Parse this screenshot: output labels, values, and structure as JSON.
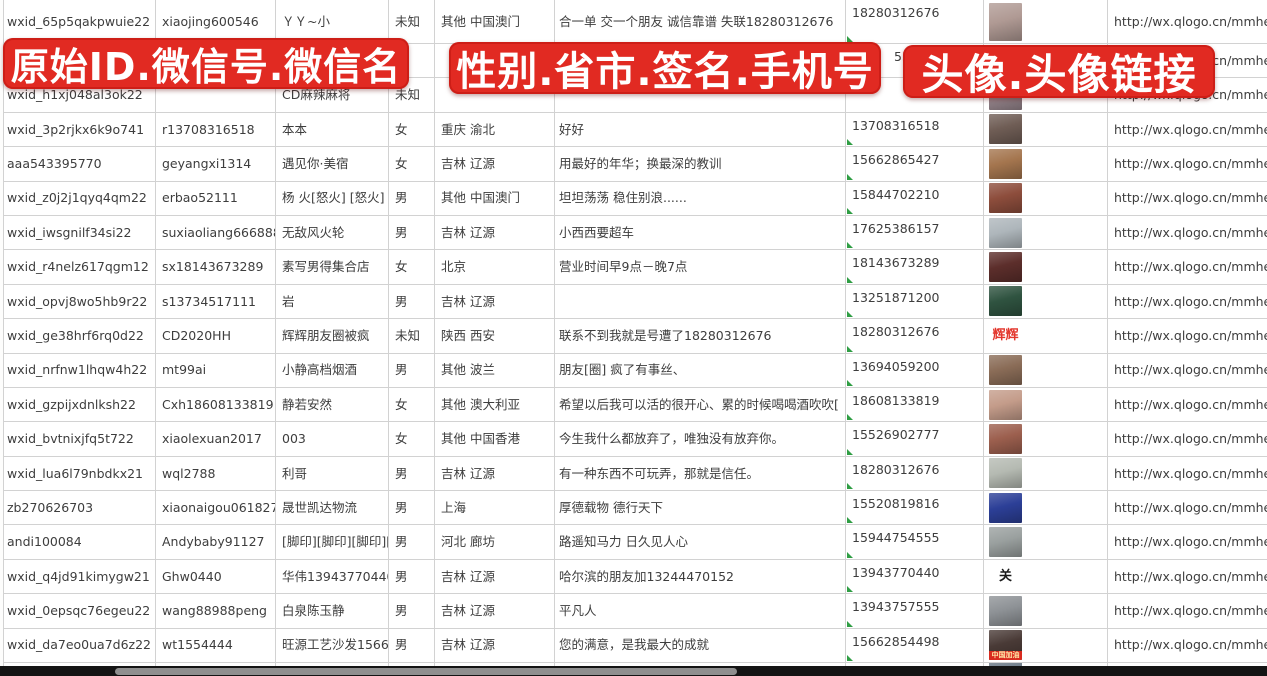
{
  "banners": [
    {
      "label": "原始ID.微信号.微信名"
    },
    {
      "label": "性别.省市.签名.手机号"
    },
    {
      "label": "头像.头像链接"
    }
  ],
  "colors": {
    "banner_red": "#e12a22",
    "grid_line": "#d2d2d2",
    "text": "#3d3d3d",
    "triangle_green": "#2f9e44",
    "avatar_strip_red": "#d92b1f"
  },
  "columns": [
    "原始ID",
    "微信号",
    "微信名",
    "性别",
    "省市",
    "签名",
    "手机号",
    "头像",
    "头像链接"
  ],
  "url_label": "http://wx.qlogo.cn/mmhead",
  "rows": [
    {
      "wxid": "wxid_65p5qakpwuie22",
      "wechat_id": "xiaojing600546",
      "name": "ＹＹ~小",
      "gender": "未知",
      "region": "其他 中国澳门",
      "signature": "合一单 交一个朋友 诚信靠谱 失联18280312676",
      "phone": "18280312676",
      "phone_indent": false,
      "avatar": {
        "kind": "photo",
        "color": "#b09a94"
      },
      "has_url": true
    },
    {
      "wxid": "",
      "wechat_id": "",
      "name": "",
      "gender": "",
      "region": "",
      "signature": "",
      "phone": "5386",
      "phone_indent": true,
      "avatar": {
        "kind": "photo",
        "color": "#44598a"
      },
      "has_url": true
    },
    {
      "wxid": "wxid_h1xj048al3ok22",
      "wechat_id": "",
      "name": "CD麻辣麻将",
      "gender": "未知",
      "region": "",
      "signature": "",
      "phone": "",
      "phone_indent": false,
      "avatar": {
        "kind": "photo",
        "color": "#97868d"
      },
      "has_url": true
    },
    {
      "wxid": "wxid_3p2rjkx6k9o741",
      "wechat_id": "r13708316518",
      "name": "本本",
      "gender": "女",
      "region": "重庆 渝北",
      "signature": "好好",
      "phone": "13708316518",
      "phone_indent": false,
      "avatar": {
        "kind": "photo",
        "color": "#6f5d55"
      },
      "has_url": true
    },
    {
      "wxid": "aaa543395770",
      "wechat_id": "geyangxi1314",
      "name": "遇见你·美宿",
      "gender": "女",
      "region": "吉林 辽源",
      "signature": "用最好的年华；换最深的教训",
      "phone": "15662865427",
      "phone_indent": false,
      "avatar": {
        "kind": "photo",
        "color": "#a4754e"
      },
      "has_url": true
    },
    {
      "wxid": "wxid_z0j2j1qyq4qm22",
      "wechat_id": "erbao52111",
      "name": "杨 火[怒火] [怒火]",
      "gender": "男",
      "region": "其他 中国澳门",
      "signature": "坦坦荡荡 稳住别浪......",
      "phone": "15844702210",
      "phone_indent": false,
      "avatar": {
        "kind": "photo",
        "color": "#8d4d3c"
      },
      "has_url": true
    },
    {
      "wxid": "wxid_iwsgnilf34si22",
      "wechat_id": "suxiaoliang666888",
      "name": "无敌风火轮",
      "gender": "男",
      "region": "吉林 辽源",
      "signature": "小西西要超车",
      "phone": "17625386157",
      "phone_indent": false,
      "avatar": {
        "kind": "photo",
        "color": "#aeb6bb"
      },
      "has_url": true
    },
    {
      "wxid": "wxid_r4nelz617qgm12",
      "wechat_id": "sx18143673289",
      "name": "素写男得集合店",
      "gender": "女",
      "region": "北京",
      "signature": "营业时间早9点－晚7点",
      "phone": "18143673289",
      "phone_indent": false,
      "avatar": {
        "kind": "photo",
        "color": "#5c2e2b"
      },
      "has_url": true
    },
    {
      "wxid": "wxid_opvj8wo5hb9r22",
      "wechat_id": "s13734517111",
      "name": "岩",
      "gender": "男",
      "region": "吉林 辽源",
      "signature": "",
      "phone": "13251871200",
      "phone_indent": false,
      "avatar": {
        "kind": "photo",
        "color": "#2f5340"
      },
      "has_url": true
    },
    {
      "wxid": "wxid_ge38hrf6rq0d22",
      "wechat_id": "CD2020HH",
      "name": "辉辉朋友圈被疯",
      "gender": "未知",
      "region": "陕西 西安",
      "signature": "联系不到我就是号遭了18280312676",
      "phone": "18280312676",
      "phone_indent": false,
      "avatar": {
        "kind": "label",
        "bg": "#ffffff",
        "color": "#e3362c",
        "text": "辉辉"
      },
      "has_url": true
    },
    {
      "wxid": "wxid_nrfnw1lhqw4h22",
      "wechat_id": "mt99ai",
      "name": "小静高档烟酒",
      "gender": "男",
      "region": "其他 波兰",
      "signature": "朋友[圈] 疯了有事丝、",
      "phone": "13694059200",
      "phone_indent": false,
      "avatar": {
        "kind": "photo",
        "color": "#8a6c57"
      },
      "has_url": true
    },
    {
      "wxid": "wxid_gzpijxdnlksh22",
      "wechat_id": "Cxh18608133819",
      "name": "静若安然",
      "gender": "女",
      "region": "其他 澳大利亚",
      "signature": "希望以后我可以活的很开心、累的时候喝喝酒吹吹[",
      "phone": "18608133819",
      "phone_indent": false,
      "avatar": {
        "kind": "photo",
        "color": "#c49c8a"
      },
      "has_url": true
    },
    {
      "wxid": "wxid_bvtnixjfq5t722",
      "wechat_id": "xiaolexuan2017",
      "name": "003",
      "gender": "女",
      "region": "其他 中国香港",
      "signature": "今生我什么都放弃了，唯独没有放弃你。",
      "phone": "15526902777",
      "phone_indent": false,
      "avatar": {
        "kind": "photo",
        "color": "#9c5f4e"
      },
      "has_url": true
    },
    {
      "wxid": "wxid_lua6l79nbdkx21",
      "wechat_id": "wql2788",
      "name": "利哥",
      "gender": "男",
      "region": "吉林 辽源",
      "signature": "有一种东西不可玩弄，那就是信任。",
      "phone": "18280312676",
      "phone_indent": false,
      "avatar": {
        "kind": "photo",
        "color": "#b5bab2"
      },
      "has_url": true
    },
    {
      "wxid": "zb270626703",
      "wechat_id": "xiaonaigou061827",
      "name": "晟世凯达物流",
      "gender": "男",
      "region": "上海",
      "signature": "厚德载物 德行天下",
      "phone": "15520819816",
      "phone_indent": false,
      "avatar": {
        "kind": "photo",
        "color": "#2c3f97"
      },
      "has_url": true
    },
    {
      "wxid": "andi100084",
      "wechat_id": "Andybaby91127",
      "name": "[脚印][脚印][脚印][脚",
      "gender": "男",
      "region": "河北 廊坊",
      "signature": "路遥知马力 日久见人心",
      "phone": "15944754555",
      "phone_indent": false,
      "avatar": {
        "kind": "photo",
        "color": "#9aa09f"
      },
      "has_url": true
    },
    {
      "wxid": "wxid_q4jd91kimygw21",
      "wechat_id": "Ghw0440",
      "name": "华伟13943770440",
      "gender": "男",
      "region": "吉林 辽源",
      "signature": "哈尔滨的朋友加13244470152",
      "phone": "13943770440",
      "phone_indent": false,
      "avatar": {
        "kind": "label",
        "bg": "#ffffff",
        "color": "#1a1a1a",
        "text": "关"
      },
      "has_url": true
    },
    {
      "wxid": "wxid_0epsqc76egeu22",
      "wechat_id": "wang88988peng",
      "name": "白泉陈玉静",
      "gender": "男",
      "region": "吉林 辽源",
      "signature": "平凡人",
      "phone": "13943757555",
      "phone_indent": false,
      "avatar": {
        "kind": "photo",
        "color": "#8e9296"
      },
      "has_url": true
    },
    {
      "wxid": "wxid_da7eo0ua7d6z22",
      "wechat_id": "wt1554444",
      "name": "旺源工艺沙发15662854",
      "gender": "男",
      "region": "吉林 辽源",
      "signature": "您的满意，是我最大的成就",
      "phone": "15662854498",
      "phone_indent": false,
      "avatar": {
        "kind": "photo",
        "color": "#493a36",
        "sub_label": "中国加油"
      },
      "has_url": true
    },
    {
      "wxid": "",
      "wechat_id": "",
      "name": "",
      "gender": "",
      "region": "",
      "signature": "",
      "phone": "",
      "phone_indent": false,
      "avatar": {
        "kind": "photo",
        "color": "#76838f"
      },
      "has_url": false
    }
  ]
}
